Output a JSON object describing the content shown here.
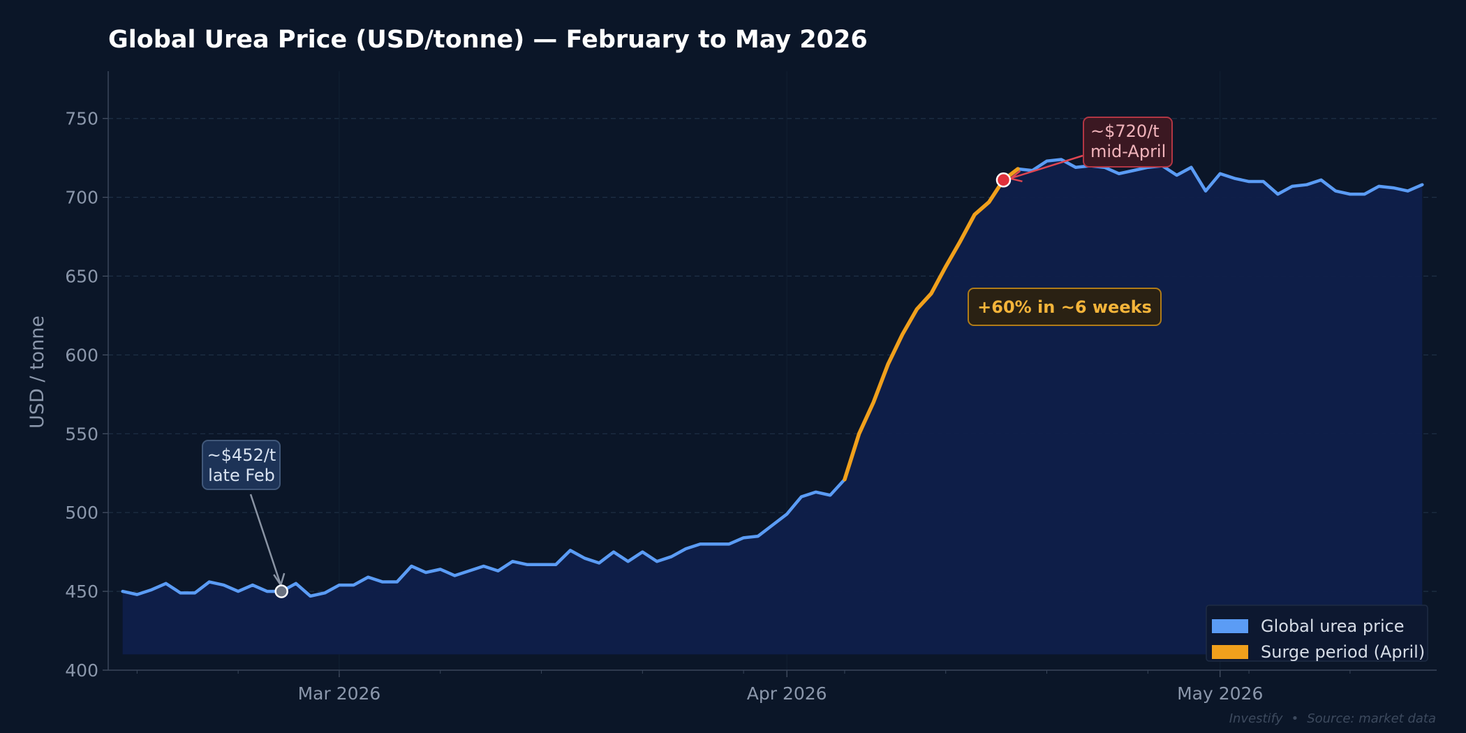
{
  "chart_data": {
    "type": "line",
    "title": "Global Urea Price (USD/tonne) — February to May 2026",
    "ylabel": "USD / tonne",
    "xlabel": "",
    "x_range": [
      "2026-02-13",
      "2026-05-16"
    ],
    "ylim": [
      400,
      780
    ],
    "yticks": [
      400,
      450,
      500,
      550,
      600,
      650,
      700,
      750
    ],
    "yticks_labels": [
      "400",
      "450",
      "500",
      "550",
      "600",
      "650",
      "700",
      "750"
    ],
    "xticks": [
      {
        "date": "2026-03-01",
        "label": "Mar 2026"
      },
      {
        "date": "2026-04-01",
        "label": "Apr 2026"
      },
      {
        "date": "2026-05-01",
        "label": "May 2026"
      }
    ],
    "grid": "horizontal dashed",
    "legend_position": "bottom-right",
    "series": [
      {
        "name": "Global urea price",
        "color": "#5b9cf5",
        "fill_color": "#0f1f4a",
        "x": [
          "2026-02-14",
          "2026-02-15",
          "2026-02-16",
          "2026-02-17",
          "2026-02-18",
          "2026-02-19",
          "2026-02-20",
          "2026-02-21",
          "2026-02-22",
          "2026-02-23",
          "2026-02-24",
          "2026-02-25",
          "2026-02-26",
          "2026-02-27",
          "2026-02-28",
          "2026-03-01",
          "2026-03-02",
          "2026-03-03",
          "2026-03-04",
          "2026-03-05",
          "2026-03-06",
          "2026-03-07",
          "2026-03-08",
          "2026-03-09",
          "2026-03-10",
          "2026-03-11",
          "2026-03-12",
          "2026-03-13",
          "2026-03-14",
          "2026-03-15",
          "2026-03-16",
          "2026-03-17",
          "2026-03-18",
          "2026-03-19",
          "2026-03-20",
          "2026-03-21",
          "2026-03-22",
          "2026-03-23",
          "2026-03-24",
          "2026-03-25",
          "2026-03-26",
          "2026-03-27",
          "2026-03-28",
          "2026-03-29",
          "2026-03-30",
          "2026-03-31",
          "2026-04-01",
          "2026-04-02",
          "2026-04-03",
          "2026-04-04",
          "2026-04-05",
          "2026-04-06",
          "2026-04-07",
          "2026-04-08",
          "2026-04-09",
          "2026-04-10",
          "2026-04-11",
          "2026-04-12",
          "2026-04-13",
          "2026-04-14",
          "2026-04-15",
          "2026-04-16",
          "2026-04-17",
          "2026-04-18",
          "2026-04-19",
          "2026-04-20",
          "2026-04-21",
          "2026-04-22",
          "2026-04-23",
          "2026-04-24",
          "2026-04-25",
          "2026-04-26",
          "2026-04-27",
          "2026-04-28",
          "2026-04-29",
          "2026-04-30",
          "2026-05-01",
          "2026-05-02",
          "2026-05-03",
          "2026-05-04",
          "2026-05-05",
          "2026-05-06",
          "2026-05-07",
          "2026-05-08",
          "2026-05-09",
          "2026-05-10",
          "2026-05-11",
          "2026-05-12",
          "2026-05-13",
          "2026-05-14",
          "2026-05-15"
        ],
        "values": [
          450,
          448,
          451,
          455,
          449,
          449,
          456,
          454,
          450,
          454,
          450,
          450,
          455,
          447,
          449,
          454,
          454,
          459,
          456,
          456,
          466,
          462,
          464,
          460,
          463,
          466,
          463,
          469,
          467,
          467,
          467,
          476,
          471,
          468,
          475,
          469,
          475,
          469,
          472,
          477,
          480,
          480,
          480,
          484,
          485,
          492,
          499,
          510,
          513,
          511,
          521,
          550,
          570,
          594,
          613,
          629,
          639,
          656,
          672,
          689,
          697,
          711,
          718,
          717,
          723,
          724,
          719,
          720,
          719,
          715,
          717,
          719,
          720,
          714,
          719,
          704,
          715,
          712,
          710,
          710,
          702,
          707,
          708,
          711,
          704,
          702,
          702,
          707,
          706,
          704,
          708
        ]
      },
      {
        "name": "Surge period (April)",
        "color": "#f0a01c",
        "x_start": "2026-04-05",
        "x_end": "2026-04-17"
      }
    ],
    "annotations": [
      {
        "lines": [
          "~$452/t",
          "late Feb"
        ],
        "point": {
          "x": "2026-02-25",
          "y": 450
        }
      },
      {
        "lines": [
          "~$720/t",
          "mid-April"
        ],
        "point": {
          "x": "2026-04-16",
          "y": 711
        }
      },
      {
        "text": "+60% in ~6 weeks"
      }
    ]
  },
  "footer": {
    "brand": "Investify",
    "separator": "•",
    "source": "Source: market data"
  }
}
